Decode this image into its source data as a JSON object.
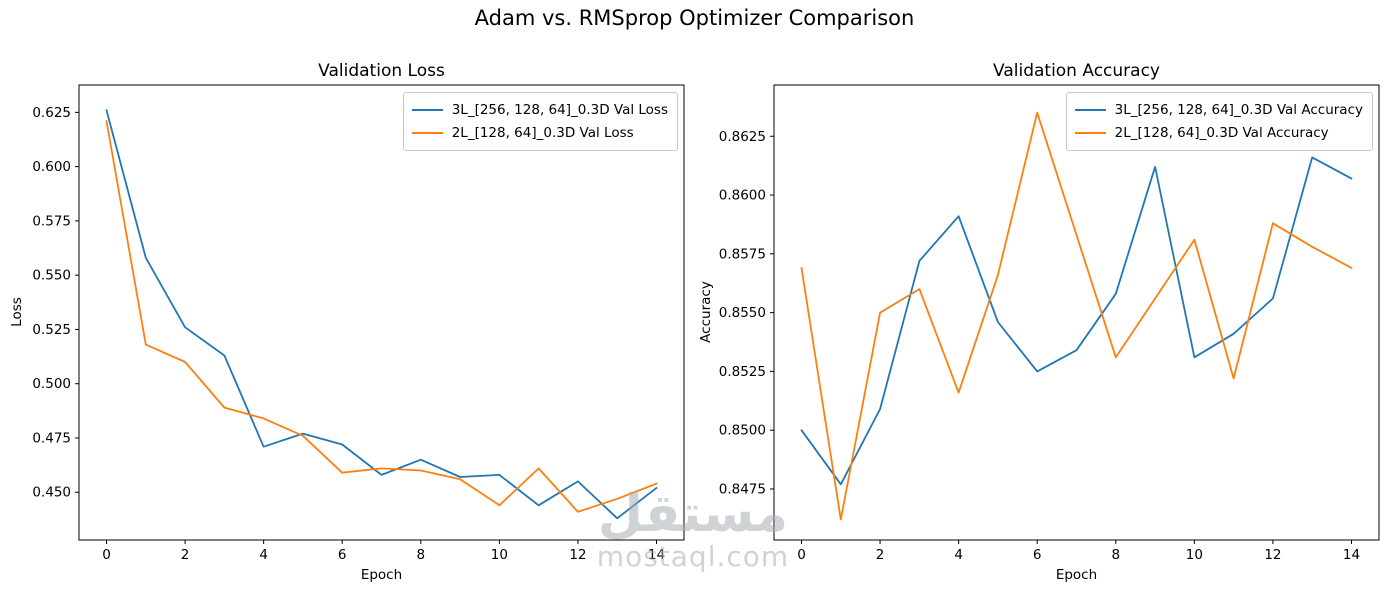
{
  "suptitle": "Adam vs. RMSprop Optimizer Comparison",
  "watermark": {
    "arabic": "مستقل",
    "domain": "mostaql.com"
  },
  "chart_data": [
    {
      "type": "line",
      "title": "Validation Loss",
      "xlabel": "Epoch",
      "ylabel": "Loss",
      "grid": false,
      "legend_location": "upper right",
      "x": [
        0,
        1,
        2,
        3,
        4,
        5,
        6,
        7,
        8,
        9,
        10,
        11,
        12,
        13,
        14
      ],
      "xlim": [
        -0.7,
        14.7
      ],
      "ylim": [
        0.428,
        0.6376
      ],
      "xticks": [
        0,
        2,
        4,
        6,
        8,
        10,
        12,
        14
      ],
      "xtick_labels": [
        "0",
        "2",
        "4",
        "6",
        "8",
        "10",
        "12",
        "14"
      ],
      "yticks": [
        0.45,
        0.475,
        0.5,
        0.525,
        0.55,
        0.575,
        0.6,
        0.625
      ],
      "ytick_labels": [
        "0.450",
        "0.475",
        "0.500",
        "0.525",
        "0.550",
        "0.575",
        "0.600",
        "0.625"
      ],
      "series": [
        {
          "name": "3L_[256, 128, 64]_0.3D Val Loss",
          "color": "#1f77b4",
          "values": [
            0.626,
            0.558,
            0.526,
            0.513,
            0.471,
            0.477,
            0.472,
            0.458,
            0.465,
            0.457,
            0.458,
            0.444,
            0.455,
            0.438,
            0.452
          ]
        },
        {
          "name": "2L_[128, 64]_0.3D Val Loss",
          "color": "#ff7f0e",
          "values": [
            0.621,
            0.518,
            0.51,
            0.489,
            0.484,
            0.476,
            0.459,
            0.461,
            0.46,
            0.456,
            0.444,
            0.461,
            0.441,
            0.447,
            0.454
          ]
        }
      ]
    },
    {
      "type": "line",
      "title": "Validation Accuracy",
      "xlabel": "Epoch",
      "ylabel": "Accuracy",
      "grid": false,
      "legend_location": "upper right",
      "x": [
        0,
        1,
        2,
        3,
        4,
        5,
        6,
        7,
        8,
        9,
        10,
        11,
        12,
        13,
        14
      ],
      "xlim": [
        -0.7,
        14.7
      ],
      "ylim": [
        0.84533,
        0.86468
      ],
      "xticks": [
        0,
        2,
        4,
        6,
        8,
        10,
        12,
        14
      ],
      "xtick_labels": [
        "0",
        "2",
        "4",
        "6",
        "8",
        "10",
        "12",
        "14"
      ],
      "yticks": [
        0.8475,
        0.85,
        0.8525,
        0.855,
        0.8575,
        0.86,
        0.8625
      ],
      "ytick_labels": [
        "0.8475",
        "0.8500",
        "0.8525",
        "0.8550",
        "0.8575",
        "0.8600",
        "0.8625"
      ],
      "series": [
        {
          "name": "3L_[256, 128, 64]_0.3D Val Accuracy",
          "color": "#1f77b4",
          "values": [
            0.85,
            0.8477,
            0.8509,
            0.8572,
            0.8591,
            0.8546,
            0.8525,
            0.8534,
            0.8558,
            0.8612,
            0.8531,
            0.8541,
            0.8556,
            0.8616,
            0.8607
          ]
        },
        {
          "name": "2L_[128, 64]_0.3D Val Accuracy",
          "color": "#ff7f0e",
          "values": [
            0.8569,
            0.8462,
            0.855,
            0.856,
            0.8516,
            0.8566,
            0.8635,
            0.8583,
            0.8531,
            0.8556,
            0.8581,
            0.8522,
            0.8588,
            0.8578,
            0.8569
          ]
        }
      ]
    }
  ]
}
